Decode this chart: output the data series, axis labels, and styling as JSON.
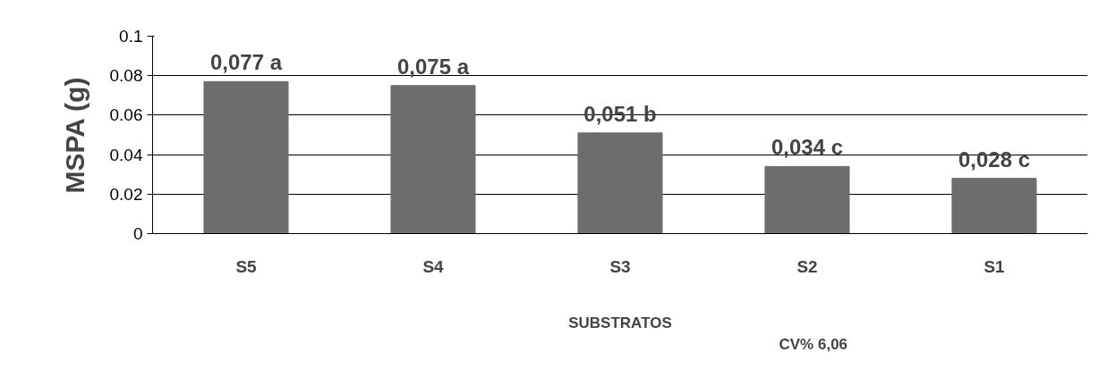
{
  "chart_data": {
    "type": "bar",
    "ylabel": "MSPA (g)",
    "xlabel": "SUBSTRATOS",
    "categories": [
      "S5",
      "S4",
      "S3",
      "S2",
      "S1"
    ],
    "values": [
      0.077,
      0.075,
      0.051,
      0.034,
      0.028
    ],
    "value_labels": [
      "0,077 a",
      "0,075 a",
      "0,051 b",
      "0,034 c",
      "0,028 c"
    ],
    "color": "#6d6d6d",
    "ylim": [
      0,
      0.1
    ],
    "yticks": [
      0,
      0.02,
      0.04,
      0.06,
      0.08,
      0.1
    ],
    "grid": "y",
    "annotations": [
      "CV% 6,06"
    ]
  }
}
